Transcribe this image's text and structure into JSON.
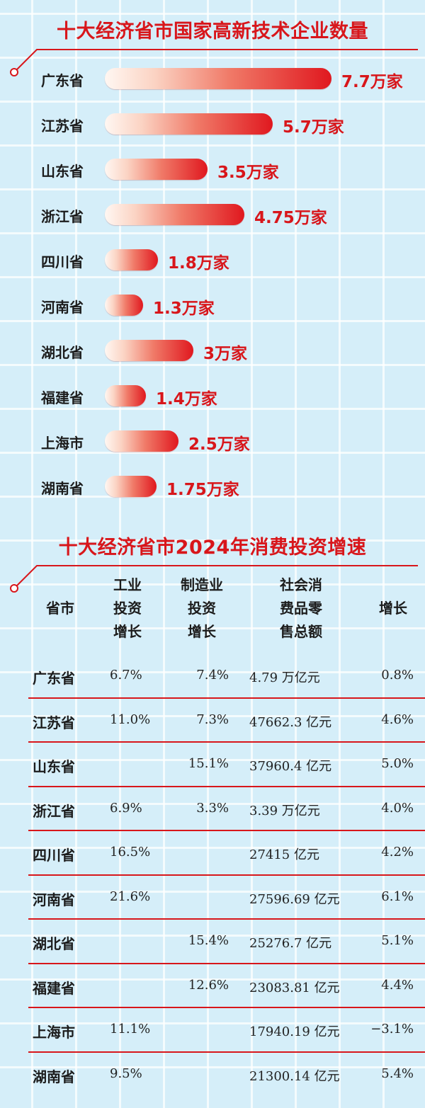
{
  "chart_data": [
    {
      "type": "bar",
      "title": "十大经济省市国家高新技术企业数量",
      "categories": [
        "广东省",
        "江苏省",
        "山东省",
        "浙江省",
        "四川省",
        "河南省",
        "湖北省",
        "福建省",
        "上海市",
        "湖南省"
      ],
      "values": [
        7.7,
        5.7,
        3.5,
        4.75,
        1.8,
        1.3,
        3,
        1.4,
        2.5,
        1.75
      ],
      "labels": [
        "7.7万家",
        "5.7万家",
        "3.5万家",
        "4.75万家",
        "1.8万家",
        "1.3万家",
        "3万家",
        "1.4万家",
        "2.5万家",
        "1.75万家"
      ],
      "unit": "万家",
      "orientation": "horizontal",
      "colors": {
        "bar_start": "#fff7f2",
        "bar_end": "#e0181f",
        "value": "#d8161b"
      }
    },
    {
      "type": "table",
      "title": "十大经济省市2024年消费投资增速",
      "columns": [
        {
          "lines": [
            "省市"
          ]
        },
        {
          "lines": [
            "工业",
            "投资",
            "增长"
          ]
        },
        {
          "lines": [
            "制造业",
            "投资",
            "增长"
          ]
        },
        {
          "lines": [
            "社会消",
            "费品零",
            "售总额"
          ]
        },
        {
          "lines": [
            "增长"
          ]
        }
      ],
      "rows": [
        [
          "广东省",
          "6.7%",
          "7.4%",
          "4.79 万亿元",
          "0.8%"
        ],
        [
          "江苏省",
          "11.0%",
          "7.3%",
          "47662.3 亿元",
          "4.6%"
        ],
        [
          "山东省",
          "",
          "15.1%",
          "37960.4 亿元",
          "5.0%"
        ],
        [
          "浙江省",
          "6.9%",
          "3.3%",
          "3.39 万亿元",
          "4.0%"
        ],
        [
          "四川省",
          "16.5%",
          "",
          "27415 亿元",
          "4.2%"
        ],
        [
          "河南省",
          "21.6%",
          "",
          "27596.69 亿元",
          "6.1%"
        ],
        [
          "湖北省",
          "",
          "15.4%",
          "25276.7 亿元",
          "5.1%"
        ],
        [
          "福建省",
          "",
          "12.6%",
          "23083.81 亿元",
          "4.4%"
        ],
        [
          "上海市",
          "11.1%",
          "",
          "17940.19 亿元",
          "−3.1%"
        ],
        [
          "湖南省",
          "9.5%",
          "",
          "21300.14 亿元",
          "5.4%"
        ]
      ]
    }
  ],
  "colors": {
    "accent": "#d8161b",
    "background": "#d5eef9",
    "grid": "#ffffff"
  }
}
